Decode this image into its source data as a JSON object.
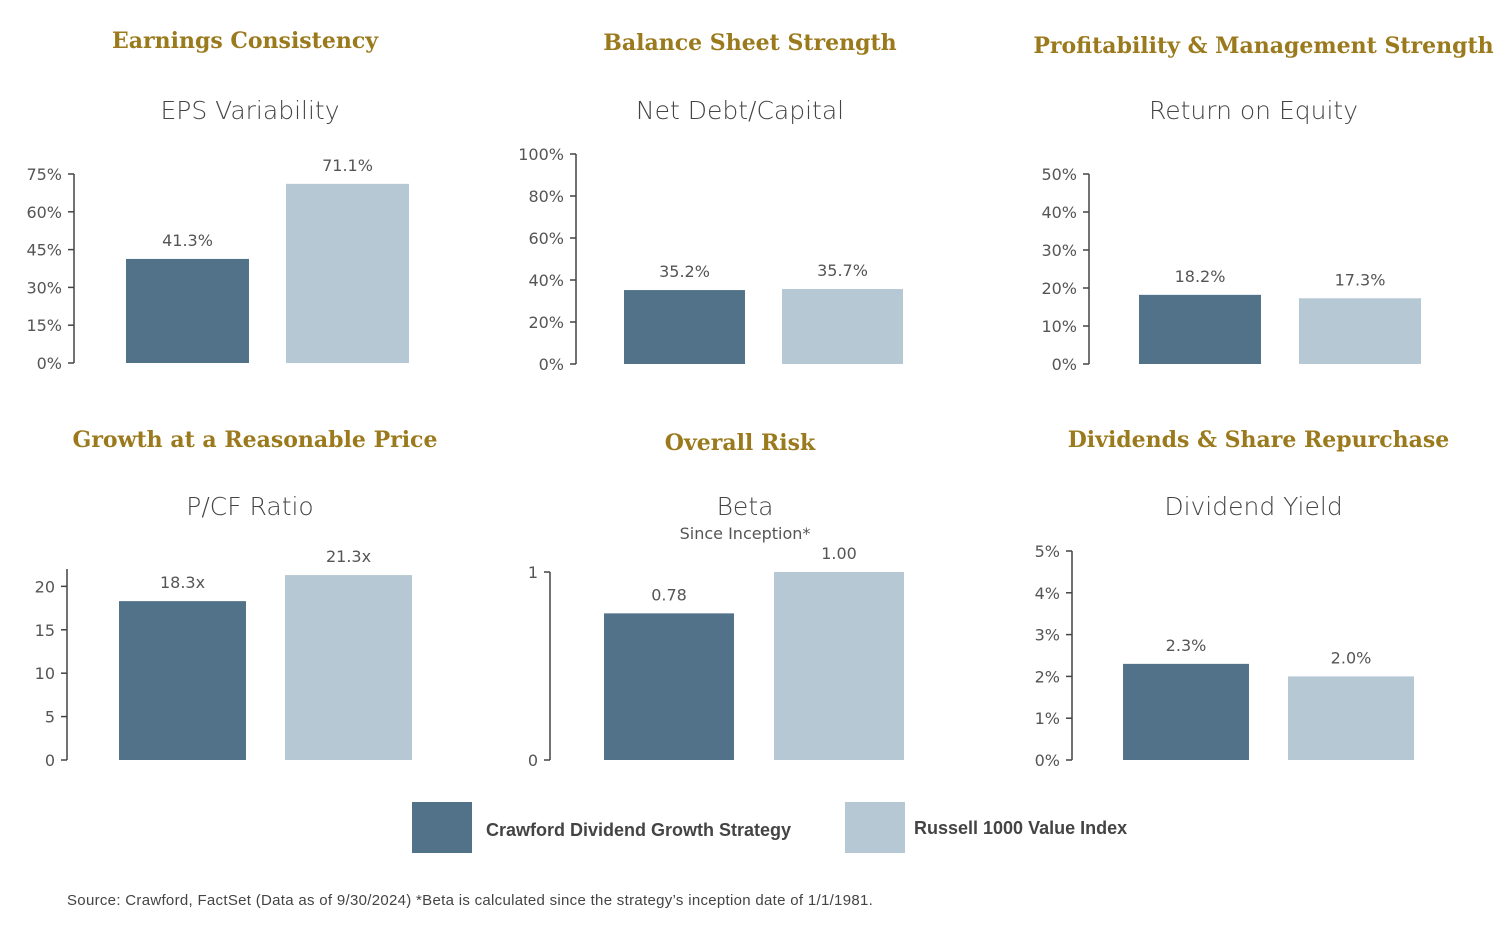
{
  "colors": {
    "strategy": "#517289",
    "index": "#b6c8d4",
    "category_title": "#9a7a1c",
    "axis": "#444444"
  },
  "legend": {
    "strategy_label": "Crawford Dividend Growth Strategy",
    "index_label": "Russell 1000 Value Index"
  },
  "footnote": "Source: Crawford, FactSet (Data as of 9/30/2024) *Beta is calculated since the strategy’s inception date of 1/1/1981.",
  "chart_data": [
    {
      "type": "bar",
      "category_title": "Earnings Consistency",
      "title": "EPS Variability",
      "subtitle": "",
      "series": [
        {
          "name": "Crawford Dividend Growth Strategy",
          "values": [
            41.3
          ],
          "label": "41.3%"
        },
        {
          "name": "Russell 1000 Value Index",
          "values": [
            71.1
          ],
          "label": "71.1%"
        }
      ],
      "ylim": [
        0,
        75
      ],
      "yticks": [
        0,
        15,
        30,
        45,
        60,
        75
      ],
      "ytick_labels": [
        "0%",
        "15%",
        "30%",
        "45%",
        "60%",
        "75%"
      ],
      "grid": false
    },
    {
      "type": "bar",
      "category_title": "Balance Sheet Strength",
      "title": "Net Debt/Capital",
      "subtitle": "",
      "series": [
        {
          "name": "Crawford Dividend Growth Strategy",
          "values": [
            35.2
          ],
          "label": "35.2%"
        },
        {
          "name": "Russell 1000 Value Index",
          "values": [
            35.7
          ],
          "label": "35.7%"
        }
      ],
      "ylim": [
        0,
        100
      ],
      "yticks": [
        0,
        20,
        40,
        60,
        80,
        100
      ],
      "ytick_labels": [
        "0%",
        "20%",
        "40%",
        "60%",
        "80%",
        "100%"
      ],
      "grid": false
    },
    {
      "type": "bar",
      "category_title": "Profitability & Management Strength",
      "title": "Return on Equity",
      "subtitle": "",
      "series": [
        {
          "name": "Crawford Dividend Growth Strategy",
          "values": [
            18.2
          ],
          "label": "18.2%"
        },
        {
          "name": "Russell 1000 Value Index",
          "values": [
            17.3
          ],
          "label": "17.3%"
        }
      ],
      "ylim": [
        0,
        50
      ],
      "yticks": [
        0,
        10,
        20,
        30,
        40,
        50
      ],
      "ytick_labels": [
        "0%",
        "10%",
        "20%",
        "30%",
        "40%",
        "50%"
      ],
      "grid": false
    },
    {
      "type": "bar",
      "category_title": "Growth at a Reasonable Price",
      "title": "P/CF Ratio",
      "subtitle": "",
      "series": [
        {
          "name": "Crawford Dividend Growth Strategy",
          "values": [
            18.3
          ],
          "label": "18.3x"
        },
        {
          "name": "Russell 1000 Value Index",
          "values": [
            21.3
          ],
          "label": "21.3x"
        }
      ],
      "ylim": [
        0,
        22
      ],
      "yticks": [
        0,
        5,
        10,
        15,
        20
      ],
      "ytick_labels": [
        "0",
        "5",
        "10",
        "15",
        "20"
      ],
      "grid": false
    },
    {
      "type": "bar",
      "category_title": "Overall Risk",
      "title": "Beta",
      "subtitle": "Since Inception*",
      "series": [
        {
          "name": "Crawford Dividend Growth Strategy",
          "values": [
            0.78
          ],
          "label": "0.78"
        },
        {
          "name": "Russell 1000 Value Index",
          "values": [
            1.0
          ],
          "label": "1.00"
        }
      ],
      "ylim": [
        0,
        1
      ],
      "yticks": [
        0,
        1
      ],
      "ytick_labels": [
        "0",
        "1"
      ],
      "grid": false
    },
    {
      "type": "bar",
      "category_title": "Dividends & Share Repurchase",
      "title": "Dividend Yield",
      "subtitle": "",
      "series": [
        {
          "name": "Crawford Dividend Growth Strategy",
          "values": [
            2.3
          ],
          "label": "2.3%"
        },
        {
          "name": "Russell 1000 Value Index",
          "values": [
            2.0
          ],
          "label": "2.0%"
        }
      ],
      "ylim": [
        0,
        5
      ],
      "yticks": [
        0,
        1,
        2,
        3,
        4,
        5
      ],
      "ytick_labels": [
        "0%",
        "1%",
        "2%",
        "3%",
        "4%",
        "5%"
      ],
      "grid": false
    }
  ]
}
